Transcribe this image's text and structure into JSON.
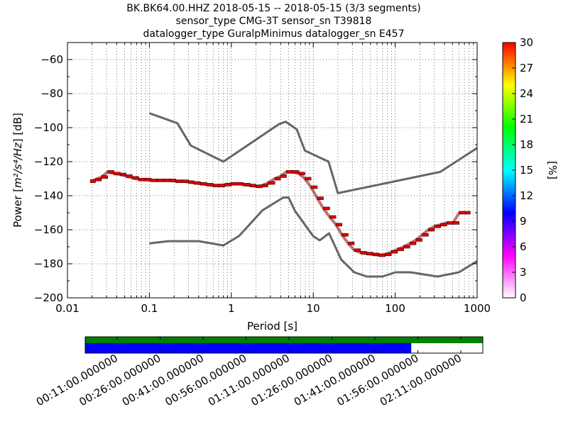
{
  "chart_data": [
    {
      "type": "line",
      "subtype": "ppsd",
      "title_lines": [
        "BK.BK64.00.HHZ   2018-05-15 -- 2018-05-15  (3/3 segments)",
        "sensor_type CMG-3T sensor_sn T39818",
        "datalogger_type GuralpMinimus datalogger_sn E457"
      ],
      "xlabel": "Period [s]",
      "ylabel_prefix": "Power [",
      "ylabel_math": "m²/s⁴/Hz",
      "ylabel_suffix": "] [dB]",
      "xscale": "log",
      "xlim": [
        0.01,
        1000
      ],
      "ylim": [
        -200,
        -50
      ],
      "x_ticks": [
        0.01,
        0.1,
        1,
        10,
        100,
        1000
      ],
      "x_tick_labels": [
        "0.01",
        "0.1",
        "1",
        "10",
        "100",
        "1000"
      ],
      "y_ticks": [
        -200,
        -180,
        -160,
        -140,
        -120,
        -100,
        -80,
        -60
      ],
      "y_tick_labels": [
        "−200",
        "−180",
        "−160",
        "−140",
        "−120",
        "−100",
        "−80",
        "−60"
      ],
      "grid": true,
      "noise_model_color": "#666666",
      "noise_models": [
        {
          "x": [
            0.1,
            0.17,
            0.4,
            0.8,
            1.24,
            2.4,
            4.3,
            5.0,
            6.0,
            10,
            12,
            15.6,
            21.9,
            31.6,
            45,
            70,
            101,
            154,
            328,
            600,
            1000
          ],
          "y": [
            -168,
            -166.7,
            -166.7,
            -169.2,
            -163.7,
            -148.6,
            -141.1,
            -141.1,
            -149,
            -163.8,
            -166.2,
            -162.1,
            -177.5,
            -185,
            -187.5,
            -187.5,
            -185,
            -185,
            -187.5,
            -185,
            -178.5
          ]
        },
        {
          "x": [
            0.1,
            0.22,
            0.32,
            0.8,
            3.8,
            4.6,
            6.3,
            7.9,
            15.4,
            20,
            354.8,
            1000
          ],
          "y": [
            -91.5,
            -97.4,
            -110.5,
            -120,
            -98,
            -96.5,
            -101,
            -113.5,
            -120,
            -138.5,
            -126,
            -112
          ]
        }
      ],
      "series": [
        {
          "color": "#e00000",
          "x": [
            0.019,
            0.022,
            0.026,
            0.031,
            0.037,
            0.044,
            0.052,
            0.062,
            0.074,
            0.088,
            0.105,
            0.125,
            0.149,
            0.177,
            0.21,
            0.25,
            0.3,
            0.35,
            0.42,
            0.5,
            0.6,
            0.7,
            0.84,
            1.0,
            1.2,
            1.4,
            1.7,
            2.0,
            2.4,
            2.8,
            3.4,
            4.0,
            4.7,
            5.6,
            6.7,
            7.9,
            9.4,
            11.2,
            13.3,
            15.9,
            18.9,
            22.4,
            26.7,
            31.7,
            37.8,
            44.9,
            53.4,
            63.5,
            75.5,
            89.8,
            106.8,
            127.0,
            151.0,
            179.6,
            213.6,
            254.0,
            302.0,
            359.2,
            427.1,
            507.9,
            604.0,
            718.3
          ],
          "y": [
            -131.5,
            -130.5,
            -129,
            -126,
            -127,
            -127.5,
            -128.5,
            -129.5,
            -130.5,
            -130.5,
            -131,
            -131,
            -131,
            -131,
            -131.5,
            -131.5,
            -132,
            -132.5,
            -133,
            -133.5,
            -134,
            -134,
            -133.5,
            -133,
            -133,
            -133.5,
            -134,
            -134.5,
            -134,
            -132.5,
            -130,
            -128.5,
            -126,
            -126,
            -127,
            -130,
            -135,
            -141.5,
            -147.5,
            -152.5,
            -157,
            -163,
            -168,
            -172,
            -173.5,
            -174,
            -174.5,
            -175,
            -174.5,
            -173,
            -171.5,
            -170,
            -168,
            -166,
            -163,
            -160,
            -158,
            -157,
            -156,
            -156,
            -150,
            -150
          ]
        }
      ],
      "colorbar": {
        "label": "[%]",
        "range": [
          0,
          30
        ],
        "ticks": [
          0,
          3,
          6,
          9,
          12,
          15,
          18,
          21,
          24,
          27,
          30
        ],
        "tick_labels": [
          "0",
          "3",
          "6",
          "9",
          "12",
          "15",
          "18",
          "21",
          "24",
          "27",
          "30"
        ],
        "colors": [
          "#ffffff",
          "#ff00ff",
          "#0000ff",
          "#00ffff",
          "#00ff00",
          "#ffff00",
          "#ff0000"
        ]
      }
    },
    {
      "type": "timeline",
      "green_coverage": [
        0,
        1
      ],
      "blue_coverage": [
        0,
        0.82
      ],
      "green_color": "#008000",
      "blue_color": "#0000ff",
      "tick_labels": [
        "00:11:00.000000",
        "00:26:00.000000",
        "00:41:00.000000",
        "00:56:00.000000",
        "01:11:00.000000",
        "01:26:00.000000",
        "01:41:00.000000",
        "01:56:00.000000",
        "02:11:00.000000"
      ]
    }
  ]
}
